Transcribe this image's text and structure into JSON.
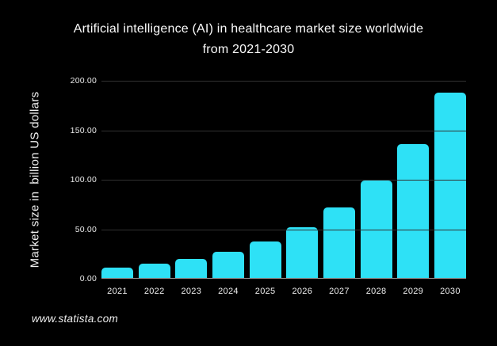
{
  "title": {
    "line1": "Artificial intelligence (AI) in healthcare market size worldwide",
    "line2": "from 2021-2030"
  },
  "chart_data": {
    "type": "bar",
    "title": "Artificial intelligence (AI) in healthcare market size worldwide from 2021-2030",
    "categories": [
      "2021",
      "2022",
      "2023",
      "2024",
      "2025",
      "2026",
      "2027",
      "2028",
      "2029",
      "2030"
    ],
    "values": [
      11,
      15,
      20,
      27,
      38,
      52,
      72,
      99,
      136,
      188
    ],
    "xlabel": "",
    "ylabel": "Market size in  billion US dollars",
    "ylim": [
      0,
      200
    ],
    "ytick_labels": [
      "200.00",
      "150.00",
      "100.00",
      "50.00",
      "0.00"
    ],
    "ytick_values": [
      200,
      150,
      100,
      50,
      0
    ],
    "grid": true,
    "legend": false,
    "bar_color": "#2ee1f6",
    "background_color": "#000000",
    "gridline_color": "#313131",
    "axis_line_color": "#9a9a9a",
    "text_color": "#fafafa"
  },
  "footer": {
    "source": "www.statista.com"
  }
}
